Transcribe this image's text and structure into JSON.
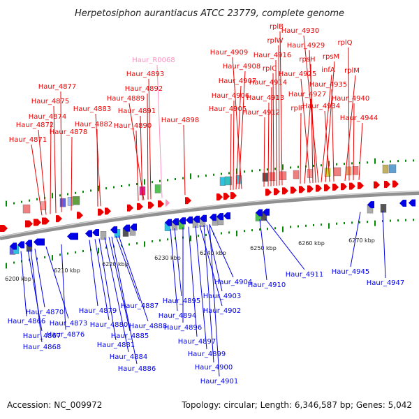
{
  "title": "Herpetosiphon aurantiacus ATCC 23779, complete genome",
  "footer": {
    "accession": "Accession: NC_009972",
    "stats": "Topology: circular; Length: 6,346,587 bp; Genes: 5,042"
  },
  "colors": {
    "forward": "#e80000",
    "reverse": "#0000e6",
    "rna": "#ff8fc0",
    "backbone": "#888888",
    "dot": "#008a00"
  },
  "scale_ticks": [
    "6200 kbp",
    "6210 kbp",
    "6220 kbp",
    "6230 kbp",
    "6240 kbp",
    "6250 kbp",
    "6260 kbp",
    "6270 kbp"
  ],
  "forward_labels": [
    "Haur_4871",
    "Haur_4872",
    "Haur_4874",
    "Haur_4875",
    "Haur_4877",
    "Haur_4878",
    "Haur_4882",
    "Haur_4883",
    "Haur_4890",
    "Haur_4891",
    "Haur_4889",
    "Haur_4892",
    "Haur_4893",
    "Haur_R0068",
    "Haur_4898",
    "Haur_4905",
    "Haur_4906",
    "Haur_4907",
    "Haur_4908",
    "Haur_4909",
    "Haur_4912",
    "Haur_4913",
    "Haur_4914",
    "rplC",
    "Haur_4916",
    "rplW",
    "rplB",
    "rplP",
    "Haur_4927",
    "Haur_4925",
    "rpsH",
    "Haur_4929",
    "Haur_4930",
    "infA",
    "rpsM",
    "Haur_4934",
    "Haur_4935",
    "rplM",
    "rplQ",
    "Haur_4940",
    "Haur_4944"
  ],
  "reverse_labels": [
    "Haur_4866",
    "Haur_4867",
    "Haur_4868",
    "Haur_4870",
    "Haur_4873",
    "Haur_4876",
    "Haur_4879",
    "Haur_4880",
    "Haur_4881",
    "Haur_4884",
    "Haur_4885",
    "Haur_4886",
    "Haur_4887",
    "Haur_4888",
    "Haur_4894",
    "Haur_4895",
    "Haur_4896",
    "Haur_4897",
    "Haur_4899",
    "Haur_4900",
    "Haur_4901",
    "Haur_4902",
    "Haur_4903",
    "Haur_4904",
    "Haur_4910",
    "Haur_4911",
    "Haur_4945",
    "Haur_4947"
  ]
}
